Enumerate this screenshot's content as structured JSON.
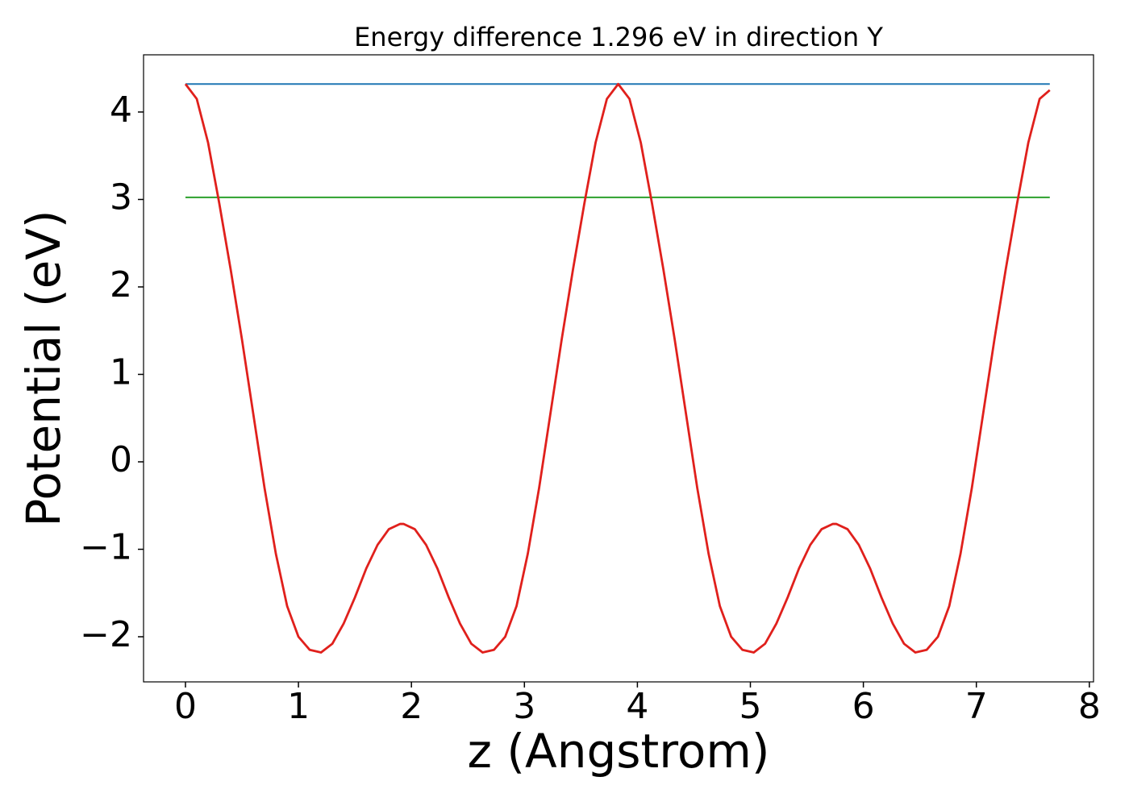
{
  "chart_data": {
    "type": "line",
    "title": "Energy difference 1.296 eV in direction Y",
    "xlabel": "z (Angstrom)",
    "ylabel": "Potential (eV)",
    "xlim": [
      -0.371,
      8.037
    ],
    "ylim": [
      -2.516,
      4.654
    ],
    "xticks": [
      0,
      1,
      2,
      3,
      4,
      5,
      6,
      7,
      8
    ],
    "yticks": [
      {
        "value": -2,
        "label": "−2"
      },
      {
        "value": -1,
        "label": "−1"
      },
      0,
      1,
      2,
      3,
      4
    ],
    "grid": false,
    "series": [
      {
        "color": "#1f77b4",
        "x": [
          0,
          7.65
        ],
        "values": [
          4.32,
          4.32
        ]
      },
      {
        "color": "#2ca02c",
        "x": [
          0,
          7.65
        ],
        "values": [
          3.024,
          3.024
        ]
      },
      {
        "color": "#e0201c",
        "x": [
          0,
          0.1,
          0.2,
          0.3,
          0.4,
          0.5,
          0.6,
          0.7,
          0.8,
          0.9,
          1.0,
          1.1,
          1.2,
          1.3,
          1.4,
          1.5,
          1.6,
          1.7,
          1.8,
          1.9,
          1.93,
          2.03,
          2.13,
          2.23,
          2.33,
          2.43,
          2.53,
          2.63,
          2.73,
          2.83,
          2.93,
          3.03,
          3.13,
          3.23,
          3.33,
          3.43,
          3.53,
          3.63,
          3.73,
          3.83,
          3.93,
          4.03,
          4.13,
          4.23,
          4.33,
          4.43,
          4.53,
          4.63,
          4.73,
          4.83,
          4.93,
          5.03,
          5.13,
          5.23,
          5.33,
          5.43,
          5.53,
          5.63,
          5.73,
          5.76,
          5.86,
          5.96,
          6.06,
          6.16,
          6.26,
          6.36,
          6.46,
          6.56,
          6.66,
          6.76,
          6.86,
          6.96,
          7.06,
          7.16,
          7.26,
          7.36,
          7.46,
          7.56,
          7.65
        ],
        "values": [
          4.32,
          4.15,
          3.65,
          2.95,
          2.2,
          1.4,
          0.55,
          -0.3,
          -1.05,
          -1.65,
          -2.0,
          -2.15,
          -2.18,
          -2.08,
          -1.85,
          -1.55,
          -1.22,
          -0.95,
          -0.77,
          -0.71,
          -0.71,
          -0.77,
          -0.95,
          -1.22,
          -1.55,
          -1.85,
          -2.08,
          -2.18,
          -2.15,
          -2.0,
          -1.65,
          -1.05,
          -0.3,
          0.55,
          1.4,
          2.2,
          2.95,
          3.65,
          4.15,
          4.32,
          4.15,
          3.65,
          2.95,
          2.2,
          1.4,
          0.55,
          -0.3,
          -1.05,
          -1.65,
          -2.0,
          -2.15,
          -2.18,
          -2.08,
          -1.85,
          -1.55,
          -1.22,
          -0.95,
          -0.77,
          -0.71,
          -0.71,
          -0.77,
          -0.95,
          -1.22,
          -1.55,
          -1.85,
          -2.08,
          -2.18,
          -2.15,
          -2.0,
          -1.65,
          -1.05,
          -0.3,
          0.55,
          1.4,
          2.2,
          2.95,
          3.65,
          4.15,
          4.25
        ]
      }
    ]
  }
}
